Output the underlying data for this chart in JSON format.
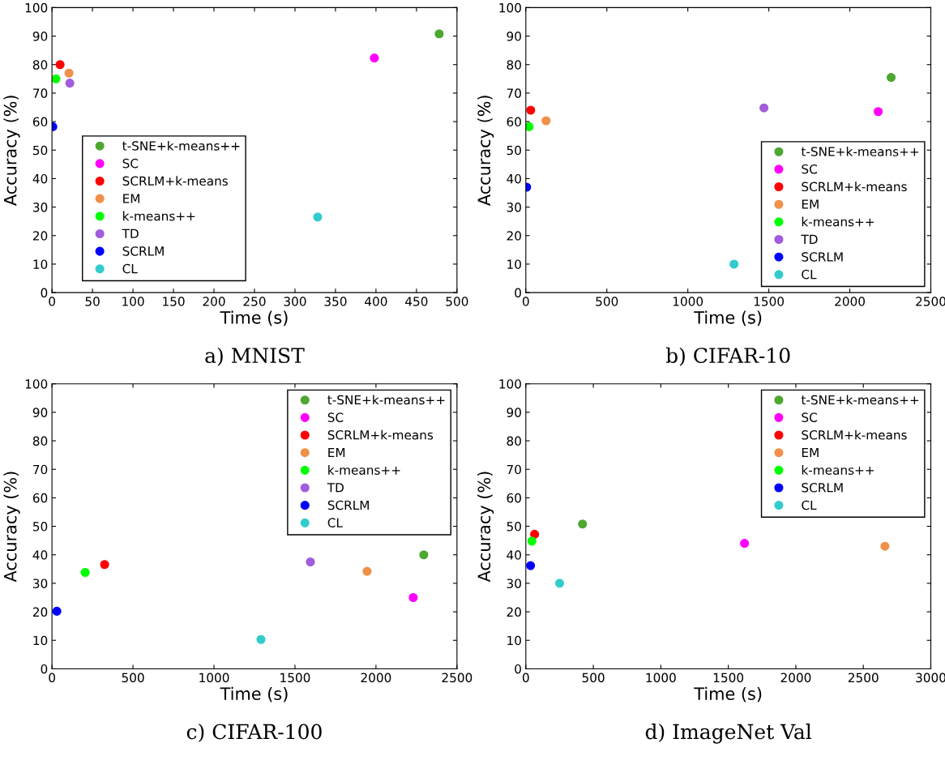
{
  "chart_data": [
    {
      "type": "scatter",
      "title": "a) MNIST",
      "xlabel": "Time (s)",
      "ylabel": "Accuracy (%)",
      "xlim": [
        0,
        500
      ],
      "xticks": [
        0,
        50,
        100,
        150,
        200,
        250,
        300,
        350,
        400,
        450,
        500
      ],
      "ylim": [
        0,
        100
      ],
      "yticks": [
        0,
        10,
        20,
        30,
        40,
        50,
        60,
        70,
        80,
        90,
        100
      ],
      "grid": false,
      "legend": "bottom left",
      "marker": "circle",
      "series": [
        {
          "name": "t-SNE+k-means++",
          "color": "#4da832",
          "x": [
            478
          ],
          "values": [
            90.8
          ]
        },
        {
          "name": "SC",
          "color": "#ff00ff",
          "x": [
            398
          ],
          "values": [
            82.3
          ]
        },
        {
          "name": "SCRLM+k-means",
          "color": "#ff0000",
          "x": [
            10
          ],
          "values": [
            80
          ]
        },
        {
          "name": "EM",
          "color": "#f0904a",
          "x": [
            21
          ],
          "values": [
            77
          ]
        },
        {
          "name": "k-means++",
          "color": "#00ff00",
          "x": [
            5
          ],
          "values": [
            75
          ]
        },
        {
          "name": "TD",
          "color": "#a25cdc",
          "x": [
            22
          ],
          "values": [
            73.5
          ]
        },
        {
          "name": "SCRLM",
          "color": "#0000ff",
          "x": [
            1
          ],
          "values": [
            58.2
          ]
        },
        {
          "name": "CL",
          "color": "#33cccc",
          "x": [
            328
          ],
          "values": [
            26.5
          ]
        }
      ]
    },
    {
      "type": "scatter",
      "title": "b) CIFAR-10",
      "xlabel": "Time (s)",
      "ylabel": "Accuracy (%)",
      "xlim": [
        0,
        2500
      ],
      "xticks": [
        0,
        500,
        1000,
        1500,
        2000,
        2500
      ],
      "ylim": [
        0,
        100
      ],
      "yticks": [
        0,
        10,
        20,
        30,
        40,
        50,
        60,
        70,
        80,
        90,
        100
      ],
      "grid": false,
      "legend": "bottom right",
      "marker": "circle",
      "series": [
        {
          "name": "t-SNE+k-means++",
          "color": "#4da832",
          "x": [
            2255
          ],
          "values": [
            75.5
          ]
        },
        {
          "name": "SC",
          "color": "#ff00ff",
          "x": [
            2175
          ],
          "values": [
            63.5
          ]
        },
        {
          "name": "SCRLM+k-means",
          "color": "#ff0000",
          "x": [
            30
          ],
          "values": [
            64
          ]
        },
        {
          "name": "EM",
          "color": "#f0904a",
          "x": [
            125
          ],
          "values": [
            60.3
          ]
        },
        {
          "name": "k-means++",
          "color": "#00ff00",
          "x": [
            20
          ],
          "values": [
            58.2
          ]
        },
        {
          "name": "TD",
          "color": "#a25cdc",
          "x": [
            1470
          ],
          "values": [
            64.8
          ]
        },
        {
          "name": "SCRLM",
          "color": "#0000ff",
          "x": [
            5
          ],
          "values": [
            37
          ]
        },
        {
          "name": "CL",
          "color": "#33cccc",
          "x": [
            1285
          ],
          "values": [
            10
          ]
        }
      ]
    },
    {
      "type": "scatter",
      "title": "c) CIFAR-100",
      "xlabel": "Time (s)",
      "ylabel": "Accuracy (%)",
      "xlim": [
        0,
        2500
      ],
      "xticks": [
        0,
        500,
        1000,
        1500,
        2000,
        2500
      ],
      "ylim": [
        0,
        100
      ],
      "yticks": [
        0,
        10,
        20,
        30,
        40,
        50,
        60,
        70,
        80,
        90,
        100
      ],
      "grid": false,
      "legend": "top right",
      "marker": "circle",
      "series": [
        {
          "name": "t-SNE+k-means++",
          "color": "#4da832",
          "x": [
            2295
          ],
          "values": [
            40
          ]
        },
        {
          "name": "SC",
          "color": "#ff00ff",
          "x": [
            2230
          ],
          "values": [
            25
          ]
        },
        {
          "name": "SCRLM+k-means",
          "color": "#ff0000",
          "x": [
            325
          ],
          "values": [
            36.6
          ]
        },
        {
          "name": "EM",
          "color": "#f0904a",
          "x": [
            1945
          ],
          "values": [
            34.2
          ]
        },
        {
          "name": "k-means++",
          "color": "#00ff00",
          "x": [
            205
          ],
          "values": [
            33.8
          ]
        },
        {
          "name": "TD",
          "color": "#a25cdc",
          "x": [
            1595
          ],
          "values": [
            37.5
          ]
        },
        {
          "name": "SCRLM",
          "color": "#0000ff",
          "x": [
            30
          ],
          "values": [
            20.2
          ]
        },
        {
          "name": "CL",
          "color": "#33cccc",
          "x": [
            1290
          ],
          "values": [
            10.3
          ]
        }
      ]
    },
    {
      "type": "scatter",
      "title": "d) ImageNet Val",
      "xlabel": "Time (s)",
      "ylabel": "Accuracy (%)",
      "xlim": [
        0,
        3000
      ],
      "xticks": [
        0,
        500,
        1000,
        1500,
        2000,
        2500,
        3000
      ],
      "ylim": [
        0,
        100
      ],
      "yticks": [
        0,
        10,
        20,
        30,
        40,
        50,
        60,
        70,
        80,
        90,
        100
      ],
      "grid": false,
      "legend": "top right",
      "marker": "circle",
      "series": [
        {
          "name": "t-SNE+k-means++",
          "color": "#4da832",
          "x": [
            420
          ],
          "values": [
            50.8
          ]
        },
        {
          "name": "SC",
          "color": "#ff00ff",
          "x": [
            1620
          ],
          "values": [
            44
          ]
        },
        {
          "name": "SCRLM+k-means",
          "color": "#ff0000",
          "x": [
            65
          ],
          "values": [
            47.2
          ]
        },
        {
          "name": "EM",
          "color": "#f0904a",
          "x": [
            2660
          ],
          "values": [
            43
          ]
        },
        {
          "name": "k-means++",
          "color": "#00ff00",
          "x": [
            45
          ],
          "values": [
            44.8
          ]
        },
        {
          "name": "SCRLM",
          "color": "#0000ff",
          "x": [
            35
          ],
          "values": [
            36.2
          ]
        },
        {
          "name": "CL",
          "color": "#33cccc",
          "x": [
            250
          ],
          "values": [
            30
          ]
        }
      ]
    }
  ]
}
